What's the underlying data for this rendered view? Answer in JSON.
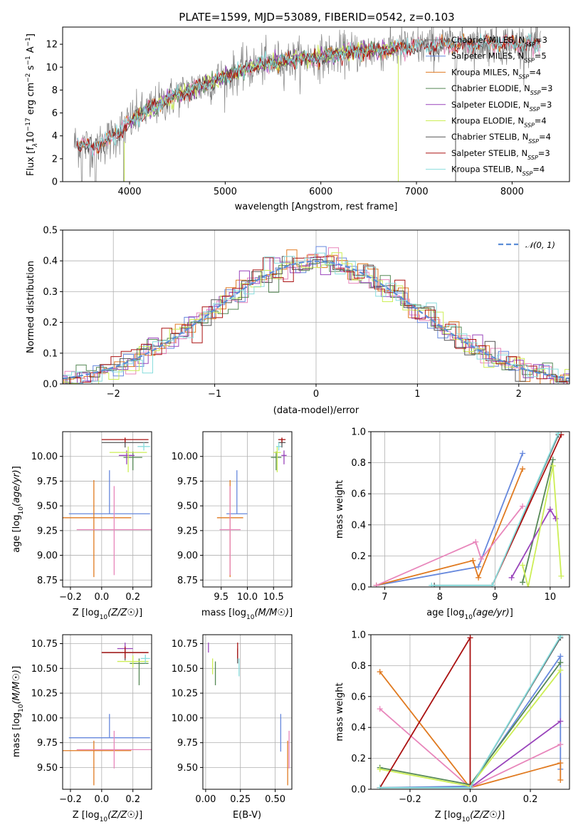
{
  "title": "PLATE=1599, MJD=53089, FIBERID=0542, z=0.103",
  "colors": {
    "chabrier_miles": "#6688dd",
    "salpeter_miles": "#e07a20",
    "kroupa_miles": "#e886bb",
    "chabrier_elodie": "#558855",
    "salpeter_elodie": "#9944bb",
    "kroupa_elodie": "#ccee55",
    "chabrier_stelib": "#555555",
    "salpeter_stelib": "#aa1111",
    "kroupa_stelib": "#88dddd",
    "spectrum": "#808080"
  },
  "legend1": [
    {
      "label": "Chabrier MILES, N",
      "sub": "SSP",
      "tail": "=3",
      "color": "#808080"
    },
    {
      "label": "Salpeter MILES, N",
      "sub": "SSP",
      "tail": "=5",
      "color": "#6688dd"
    },
    {
      "label": "Kroupa MILES, N",
      "sub": "SSP",
      "tail": "=4",
      "color": "#e07a20"
    },
    {
      "label": "Chabrier ELODIE, N",
      "sub": "SSP",
      "tail": "=3",
      "color": "#558855"
    },
    {
      "label": "Salpeter ELODIE, N",
      "sub": "SSP",
      "tail": "=3",
      "color": "#9944bb"
    },
    {
      "label": "Kroupa ELODIE, N",
      "sub": "SSP",
      "tail": "=4",
      "color": "#ccee55"
    },
    {
      "label": "Chabrier STELIB, N",
      "sub": "SSP",
      "tail": "=4",
      "color": "#555555"
    },
    {
      "label": "Salpeter STELIB, N",
      "sub": "SSP",
      "tail": "=3",
      "color": "#aa1111"
    },
    {
      "label": "Kroupa STELIB, N",
      "sub": "SSP",
      "tail": "=4",
      "color": "#88dddd"
    }
  ],
  "legend2": {
    "label": "𝒩(0, 1)",
    "color": "#5b8dd6"
  },
  "chart_data": [
    {
      "id": "spectrum",
      "type": "line",
      "xlabel": "wavelength [Angstrom, rest frame]",
      "ylabel_main": "Flux [f",
      "ylabel_sub": "λ",
      "ylabel_rest": "10",
      "ylabel_exp1": "−17",
      "ylabel_mid": " erg cm",
      "ylabel_exp2": "−2",
      "ylabel_mid2": " s",
      "ylabel_exp3": "−1",
      "ylabel_end": " A",
      "ylabel_exp4": "−1",
      "ylabel_close": "]",
      "xlim": [
        3300,
        8600
      ],
      "ylim": [
        0,
        13.5
      ],
      "xticks": [
        4000,
        5000,
        6000,
        7000,
        8000
      ],
      "yticks": [
        0,
        2,
        4,
        6,
        8,
        10,
        12
      ],
      "x": [
        3450,
        3600,
        3800,
        4000,
        4200,
        4500,
        4800,
        5100,
        5400,
        5700,
        6000,
        6300,
        6600,
        6900,
        7200,
        7500,
        7800,
        8100,
        8300
      ],
      "y": [
        3.3,
        3.0,
        3.7,
        5.2,
        6.3,
        7.6,
        8.5,
        9.5,
        10.3,
        10.6,
        10.9,
        11.3,
        11.5,
        11.7,
        11.9,
        12.0,
        12.1,
        12.0,
        12.0
      ]
    },
    {
      "id": "residuals",
      "type": "line",
      "xlabel": "(data-model)/error",
      "ylabel": "Normed distribution",
      "xlim": [
        -2.5,
        2.5
      ],
      "ylim": [
        0,
        0.5
      ],
      "xticks": [
        -2,
        -1,
        0,
        1,
        2
      ],
      "yticks": [
        0.0,
        0.1,
        0.2,
        0.3,
        0.4,
        0.5
      ],
      "series": [
        {
          "name": "𝒩(0, 1)",
          "mu": 0,
          "sigma": 1
        }
      ]
    },
    {
      "id": "age_vs_Z",
      "type": "scatter",
      "xlabel": "Z [log10(Z/Z☉)]",
      "ylabel": "age  [log10(age/yr)]",
      "xlim": [
        -0.25,
        0.32
      ],
      "ylim": [
        8.68,
        10.25
      ],
      "xticks": [
        -0.2,
        0.0,
        0.2
      ],
      "yticks": [
        8.75,
        9.0,
        9.25,
        9.5,
        9.75,
        10.0
      ],
      "points": [
        {
          "s": "chabrier_miles",
          "x": 0.05,
          "xerr": 0.26,
          "y": 9.42,
          "yerr": [
            0.0,
            0.44
          ]
        },
        {
          "s": "salpeter_miles",
          "x": -0.05,
          "xerr": 0.24,
          "y": 9.38,
          "yerr": [
            0.6,
            0.38
          ]
        },
        {
          "s": "kroupa_miles",
          "x": 0.08,
          "xerr": 0.24,
          "y": 9.26,
          "yerr": [
            0.46,
            0.44
          ]
        },
        {
          "s": "chabrier_elodie",
          "x": 0.2,
          "xerr": 0.06,
          "y": 9.99,
          "yerr": [
            0.13,
            0.06
          ]
        },
        {
          "s": "salpeter_elodie",
          "x": 0.16,
          "xerr": 0.05,
          "y": 10.01,
          "yerr": [
            0.09,
            0.05
          ]
        },
        {
          "s": "kroupa_elodie",
          "x": 0.17,
          "xerr": 0.12,
          "y": 10.04,
          "yerr": [
            0.2,
            0.06
          ]
        },
        {
          "s": "chabrier_stelib",
          "x": 0.15,
          "xerr": 0.15,
          "y": 10.14,
          "yerr": [
            0.05,
            0.04
          ]
        },
        {
          "s": "salpeter_stelib",
          "x": 0.15,
          "xerr": 0.15,
          "y": 10.17,
          "yerr": [
            0.03,
            0.02
          ]
        },
        {
          "s": "kroupa_stelib",
          "x": 0.27,
          "xerr": 0.04,
          "y": 10.1,
          "yerr": [
            0.04,
            0.04
          ]
        }
      ]
    },
    {
      "id": "age_vs_mass",
      "type": "scatter",
      "xlabel": "mass [log10(M/M☉)]",
      "ylabel": "",
      "xlim": [
        9.15,
        10.85
      ],
      "ylim": [
        8.68,
        10.25
      ],
      "xticks": [
        9.5,
        10.0,
        10.5
      ],
      "yticks": [
        8.75,
        9.0,
        9.25,
        9.5,
        9.75,
        10.0
      ],
      "points": [
        {
          "s": "chabrier_miles",
          "x": 9.8,
          "xerr": 0.2,
          "y": 9.42,
          "yerr": [
            0.0,
            0.44
          ]
        },
        {
          "s": "salpeter_miles",
          "x": 9.67,
          "xerr": 0.25,
          "y": 9.38,
          "yerr": [
            0.6,
            0.38
          ]
        },
        {
          "s": "kroupa_miles",
          "x": 9.67,
          "xerr": 0.2,
          "y": 9.26,
          "yerr": [
            0.46,
            0.44
          ]
        },
        {
          "s": "chabrier_elodie",
          "x": 10.55,
          "xerr": 0.1,
          "y": 9.99,
          "yerr": [
            0.13,
            0.06
          ]
        },
        {
          "s": "salpeter_elodie",
          "x": 10.7,
          "xerr": 0.05,
          "y": 10.01,
          "yerr": [
            0.09,
            0.05
          ]
        },
        {
          "s": "kroupa_elodie",
          "x": 10.57,
          "xerr": 0.07,
          "y": 10.04,
          "yerr": [
            0.2,
            0.06
          ]
        },
        {
          "s": "chabrier_stelib",
          "x": 10.66,
          "xerr": 0.07,
          "y": 10.14,
          "yerr": [
            0.05,
            0.04
          ]
        },
        {
          "s": "salpeter_stelib",
          "x": 10.66,
          "xerr": 0.07,
          "y": 10.17,
          "yerr": [
            0.03,
            0.02
          ]
        },
        {
          "s": "kroupa_stelib",
          "x": 10.6,
          "xerr": 0.05,
          "y": 10.1,
          "yerr": [
            0.04,
            0.04
          ]
        }
      ]
    },
    {
      "id": "weight_vs_age",
      "type": "line",
      "xlabel": "age  [log10(age/yr)]",
      "ylabel": "mass weight",
      "xlim": [
        6.75,
        10.35
      ],
      "ylim": [
        0,
        1
      ],
      "xticks": [
        7,
        8,
        9,
        10
      ],
      "yticks": [
        0.0,
        0.2,
        0.4,
        0.6,
        0.8,
        1.0
      ],
      "series": [
        {
          "s": "chabrier_miles",
          "x": [
            6.85,
            8.7,
            9.5
          ],
          "y": [
            0.01,
            0.13,
            0.86
          ]
        },
        {
          "s": "salpeter_miles",
          "x": [
            6.85,
            8.6,
            8.7,
            9.5
          ],
          "y": [
            0.01,
            0.17,
            0.06,
            0.76
          ]
        },
        {
          "s": "kroupa_miles",
          "x": [
            6.85,
            8.65,
            8.75,
            9.5
          ],
          "y": [
            0.01,
            0.29,
            0.18,
            0.52
          ]
        },
        {
          "s": "chabrier_elodie",
          "x": [
            9.5,
            10.05
          ],
          "y": [
            0.03,
            0.82
          ]
        },
        {
          "s": "salpeter_elodie",
          "x": [
            9.3,
            10.0,
            10.1
          ],
          "y": [
            0.06,
            0.5,
            0.44
          ]
        },
        {
          "s": "kroupa_elodie",
          "x": [
            9.5,
            9.6,
            10.05,
            10.2
          ],
          "y": [
            0.14,
            0.0,
            0.78,
            0.07
          ]
        },
        {
          "s": "chabrier_stelib",
          "x": [
            7.9,
            8.95,
            10.15
          ],
          "y": [
            0.01,
            0.01,
            0.98
          ]
        },
        {
          "s": "salpeter_stelib",
          "x": [
            8.95,
            10.2
          ],
          "y": [
            0.01,
            0.98
          ]
        },
        {
          "s": "kroupa_stelib",
          "x": [
            7.85,
            8.95,
            10.15
          ],
          "y": [
            0.01,
            0.01,
            0.99
          ]
        }
      ]
    },
    {
      "id": "mass_vs_Z",
      "type": "scatter",
      "xlabel": "Z [log10(Z/Z☉)]",
      "ylabel": "mass [log10(M/M☉)]",
      "xlim": [
        -0.25,
        0.32
      ],
      "ylim": [
        9.28,
        10.84
      ],
      "xticks": [
        -0.2,
        0.0,
        0.2
      ],
      "yticks": [
        9.5,
        9.75,
        10.0,
        10.25,
        10.5,
        10.75
      ],
      "points": [
        {
          "s": "chabrier_miles",
          "x": 0.05,
          "xerr": 0.26,
          "y": 9.8,
          "yerr": [
            0.0,
            0.24
          ]
        },
        {
          "s": "salpeter_miles",
          "x": -0.05,
          "xerr": 0.24,
          "y": 9.67,
          "yerr": [
            0.35,
            0.1
          ]
        },
        {
          "s": "kroupa_miles",
          "x": 0.08,
          "xerr": 0.24,
          "y": 9.68,
          "yerr": [
            0.19,
            0.19
          ]
        },
        {
          "s": "chabrier_elodie",
          "x": 0.24,
          "xerr": 0.06,
          "y": 10.55,
          "yerr": [
            0.22,
            0.05
          ]
        },
        {
          "s": "salpeter_elodie",
          "x": 0.15,
          "xerr": 0.05,
          "y": 10.7,
          "yerr": [
            0.04,
            0.06
          ]
        },
        {
          "s": "kroupa_elodie",
          "x": 0.2,
          "xerr": 0.1,
          "y": 10.57,
          "yerr": [
            0.06,
            0.06
          ]
        },
        {
          "s": "chabrier_stelib",
          "x": 0.15,
          "xerr": 0.15,
          "y": 10.66,
          "yerr": [
            0.08,
            0.04
          ]
        },
        {
          "s": "salpeter_stelib",
          "x": 0.15,
          "xerr": 0.15,
          "y": 10.66,
          "yerr": [
            0.06,
            0.06
          ]
        },
        {
          "s": "kroupa_stelib",
          "x": 0.28,
          "xerr": 0.03,
          "y": 10.6,
          "yerr": [
            0.05,
            0.04
          ]
        }
      ]
    },
    {
      "id": "mass_vs_ebv",
      "type": "scatter",
      "xlabel": "E(B-V)",
      "ylabel": "",
      "xlim": [
        -0.02,
        0.62
      ],
      "ylim": [
        9.28,
        10.84
      ],
      "xticks": [
        0.0,
        0.25,
        0.5
      ],
      "yticks": [
        9.5,
        9.75,
        10.0,
        10.25,
        10.5,
        10.75
      ],
      "points": [
        {
          "s": "chabrier_miles",
          "x": 0.54,
          "y": 9.8,
          "yerr": [
            0.14,
            0.24
          ]
        },
        {
          "s": "salpeter_miles",
          "x": 0.59,
          "y": 9.67,
          "yerr": [
            0.35,
            0.1
          ]
        },
        {
          "s": "kroupa_miles",
          "x": 0.6,
          "y": 9.68,
          "yerr": [
            0.19,
            0.19
          ]
        },
        {
          "s": "chabrier_elodie",
          "x": 0.07,
          "y": 10.45,
          "yerr": [
            0.12,
            0.12
          ]
        },
        {
          "s": "salpeter_elodie",
          "x": 0.02,
          "y": 10.7,
          "yerr": [
            0.04,
            0.06
          ]
        },
        {
          "s": "kroupa_elodie",
          "x": 0.05,
          "y": 10.5,
          "yerr": [
            0.06,
            0.1
          ]
        },
        {
          "s": "chabrier_stelib",
          "x": 0.23,
          "y": 10.6,
          "yerr": [
            0.05,
            0.1
          ]
        },
        {
          "s": "salpeter_stelib",
          "x": 0.23,
          "y": 10.66,
          "yerr": [
            0.06,
            0.1
          ]
        },
        {
          "s": "kroupa_stelib",
          "x": 0.24,
          "y": 10.5,
          "yerr": [
            0.08,
            0.1
          ]
        }
      ]
    },
    {
      "id": "weight_vs_Z",
      "type": "line",
      "xlabel": "Z [log10(Z/Z☉)]",
      "ylabel": "mass weight",
      "xlim": [
        -0.33,
        0.33
      ],
      "ylim": [
        0,
        1
      ],
      "xticks": [
        -0.2,
        0.0,
        0.2
      ],
      "yticks": [
        0.0,
        0.2,
        0.4,
        0.6,
        0.8,
        1.0
      ],
      "series": [
        {
          "s": "chabrier_miles",
          "x": [
            -0.3,
            0.0,
            0.3,
            0.3
          ],
          "y": [
            0.01,
            0.02,
            0.86,
            0.13
          ]
        },
        {
          "s": "salpeter_miles",
          "x": [
            -0.3,
            0.0,
            0.3,
            0.3
          ],
          "y": [
            0.76,
            0.01,
            0.17,
            0.06
          ]
        },
        {
          "s": "kroupa_miles",
          "x": [
            -0.3,
            0.0,
            0.3
          ],
          "y": [
            0.52,
            0.01,
            0.29
          ]
        },
        {
          "s": "chabrier_elodie",
          "x": [
            -0.3,
            0.0,
            0.3
          ],
          "y": [
            0.14,
            0.03,
            0.82
          ]
        },
        {
          "s": "salpeter_elodie",
          "x": [
            0.0,
            0.3
          ],
          "y": [
            0.01,
            0.44
          ]
        },
        {
          "s": "kroupa_elodie",
          "x": [
            -0.3,
            0.0,
            0.3
          ],
          "y": [
            0.13,
            0.02,
            0.77
          ]
        },
        {
          "s": "chabrier_stelib",
          "x": [
            -0.3,
            0.0,
            0.3
          ],
          "y": [
            0.01,
            0.01,
            0.98
          ]
        },
        {
          "s": "salpeter_stelib",
          "x": [
            -0.3,
            0.0,
            0.0
          ],
          "y": [
            0.01,
            0.98,
            0.01
          ]
        },
        {
          "s": "kroupa_stelib",
          "x": [
            -0.3,
            0.0,
            0.3
          ],
          "y": [
            0.01,
            0.01,
            0.99
          ]
        }
      ]
    }
  ]
}
